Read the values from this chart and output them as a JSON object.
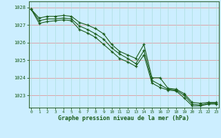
{
  "line1": [
    1027.9,
    1027.4,
    1027.5,
    1027.5,
    1027.55,
    1027.5,
    1027.15,
    1027.0,
    1026.8,
    1026.5,
    1025.9,
    1025.5,
    1025.3,
    1025.1,
    1025.9,
    1024.0,
    1024.0,
    1023.4,
    1023.35,
    1023.1,
    1022.6,
    1022.55,
    1022.6,
    1022.6
  ],
  "line2": [
    1027.9,
    1027.25,
    1027.35,
    1027.35,
    1027.4,
    1027.35,
    1026.95,
    1026.75,
    1026.5,
    1026.2,
    1025.7,
    1025.35,
    1025.1,
    1024.8,
    1025.55,
    1023.85,
    1023.6,
    1023.35,
    1023.3,
    1023.0,
    1022.5,
    1022.45,
    1022.55,
    1022.55
  ],
  "line3": [
    1027.9,
    1027.1,
    1027.2,
    1027.25,
    1027.3,
    1027.25,
    1026.75,
    1026.55,
    1026.3,
    1025.9,
    1025.5,
    1025.1,
    1024.9,
    1024.65,
    1025.3,
    1023.7,
    1023.45,
    1023.3,
    1023.25,
    1022.85,
    1022.4,
    1022.4,
    1022.5,
    1022.5
  ],
  "line_color": "#1a5c1a",
  "bg_color": "#cceeff",
  "grid_color_h": "#dd9999",
  "grid_color_v": "#aadddd",
  "xlabel": "Graphe pression niveau de la mer (hPa)",
  "xlabel_color": "#1a5c1a",
  "tick_color": "#1a5c1a",
  "axis_color": "#336633",
  "ylim": [
    1022.3,
    1028.35
  ],
  "yticks": [
    1023,
    1024,
    1025,
    1026,
    1027,
    1028
  ],
  "xticks": [
    0,
    1,
    2,
    3,
    4,
    5,
    6,
    7,
    8,
    9,
    10,
    11,
    12,
    13,
    14,
    15,
    16,
    17,
    18,
    19,
    20,
    21,
    22,
    23
  ],
  "marker": "+",
  "marker_size": 3.5,
  "line_width": 0.8
}
